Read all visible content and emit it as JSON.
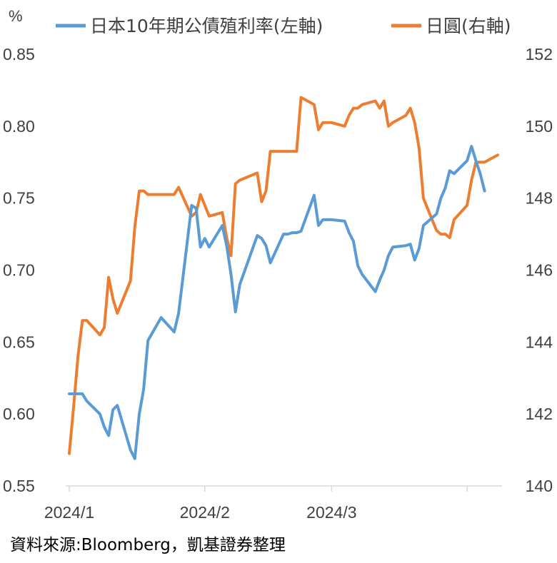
{
  "chart_data": {
    "type": "line",
    "unit_label": "%",
    "colors": {
      "jgb": "#5b9bd5",
      "jpy": "#ed7d31"
    },
    "legend": [
      "日本10年期公債殖利率(左軸)",
      "日圓(右軸)"
    ],
    "x_ticks": [
      "2024/1",
      "2024/2",
      "2024/3"
    ],
    "y_left": {
      "min": 0.55,
      "max": 0.85,
      "ticks": [
        "0.55",
        "0.60",
        "0.65",
        "0.70",
        "0.75",
        "0.80",
        "0.85"
      ]
    },
    "y_right": {
      "min": 140,
      "max": 152,
      "ticks": [
        "140",
        "142",
        "144",
        "146",
        "148",
        "150",
        "152"
      ]
    },
    "series": [
      {
        "name": "日本10年期公債殖利率(左軸)",
        "axis": "left",
        "color": "#5b9bd5",
        "points": [
          [
            "2024-01-01",
            0.614
          ],
          [
            "2024-01-02",
            0.614
          ],
          [
            "2024-01-03",
            0.614
          ],
          [
            "2024-01-04",
            0.614
          ],
          [
            "2024-01-05",
            0.609
          ],
          [
            "2024-01-08",
            0.6
          ],
          [
            "2024-01-09",
            0.591
          ],
          [
            "2024-01-10",
            0.585
          ],
          [
            "2024-01-11",
            0.603
          ],
          [
            "2024-01-12",
            0.606
          ],
          [
            "2024-01-15",
            0.575
          ],
          [
            "2024-01-16",
            0.569
          ],
          [
            "2024-01-17",
            0.6
          ],
          [
            "2024-01-18",
            0.617
          ],
          [
            "2024-01-19",
            0.651
          ],
          [
            "2024-01-22",
            0.667
          ],
          [
            "2024-01-25",
            0.657
          ],
          [
            "2024-01-26",
            0.67
          ],
          [
            "2024-01-29",
            0.745
          ],
          [
            "2024-01-30",
            0.743
          ],
          [
            "2024-01-31",
            0.716
          ],
          [
            "2024-02-01",
            0.722
          ],
          [
            "2024-02-02",
            0.716
          ],
          [
            "2024-02-05",
            0.731
          ],
          [
            "2024-02-06",
            0.717
          ],
          [
            "2024-02-07",
            0.697
          ],
          [
            "2024-02-08",
            0.671
          ],
          [
            "2024-02-09",
            0.69
          ],
          [
            "2024-02-13",
            0.724
          ],
          [
            "2024-02-14",
            0.722
          ],
          [
            "2024-02-15",
            0.717
          ],
          [
            "2024-02-16",
            0.705
          ],
          [
            "2024-02-19",
            0.725
          ],
          [
            "2024-02-20",
            0.725
          ],
          [
            "2024-02-21",
            0.726
          ],
          [
            "2024-02-22",
            0.726
          ],
          [
            "2024-02-23",
            0.727
          ],
          [
            "2024-02-26",
            0.752
          ],
          [
            "2024-02-27",
            0.731
          ],
          [
            "2024-02-28",
            0.735
          ],
          [
            "2024-02-29",
            0.735
          ],
          [
            "2024-03-01",
            0.735
          ],
          [
            "2024-03-04",
            0.734
          ],
          [
            "2024-03-05",
            0.726
          ],
          [
            "2024-03-06",
            0.72
          ],
          [
            "2024-03-07",
            0.703
          ],
          [
            "2024-03-08",
            0.697
          ],
          [
            "2024-03-11",
            0.685
          ],
          [
            "2024-03-12",
            0.693
          ],
          [
            "2024-03-13",
            0.7
          ],
          [
            "2024-03-14",
            0.71
          ],
          [
            "2024-03-15",
            0.716
          ],
          [
            "2024-03-18",
            0.717
          ],
          [
            "2024-03-19",
            0.718
          ],
          [
            "2024-03-20",
            0.707
          ],
          [
            "2024-03-21",
            0.715
          ],
          [
            "2024-03-22",
            0.731
          ],
          [
            "2024-03-25",
            0.739
          ],
          [
            "2024-03-26",
            0.75
          ],
          [
            "2024-03-27",
            0.757
          ],
          [
            "2024-03-28",
            0.769
          ],
          [
            "2024-03-29",
            0.767
          ],
          [
            "2024-04-01",
            0.776
          ],
          [
            "2024-04-02",
            0.786
          ],
          [
            "2024-04-03",
            0.776
          ],
          [
            "2024-04-04",
            0.767
          ],
          [
            "2024-04-05",
            0.755
          ]
        ]
      },
      {
        "name": "日圓(右軸)",
        "axis": "right",
        "color": "#ed7d31",
        "points": [
          [
            "2024-01-01",
            140.9
          ],
          [
            "2024-01-02",
            142.2
          ],
          [
            "2024-01-03",
            143.6
          ],
          [
            "2024-01-04",
            144.6
          ],
          [
            "2024-01-05",
            144.6
          ],
          [
            "2024-01-08",
            144.2
          ],
          [
            "2024-01-09",
            144.4
          ],
          [
            "2024-01-10",
            145.8
          ],
          [
            "2024-01-11",
            145.2
          ],
          [
            "2024-01-12",
            144.8
          ],
          [
            "2024-01-15",
            145.7
          ],
          [
            "2024-01-16",
            147.2
          ],
          [
            "2024-01-17",
            148.2
          ],
          [
            "2024-01-18",
            148.2
          ],
          [
            "2024-01-19",
            148.1
          ],
          [
            "2024-01-22",
            148.1
          ],
          [
            "2024-01-25",
            148.1
          ],
          [
            "2024-01-26",
            148.3
          ],
          [
            "2024-01-29",
            147.5
          ],
          [
            "2024-01-30",
            147.6
          ],
          [
            "2024-01-31",
            148.1
          ],
          [
            "2024-02-01",
            147.8
          ],
          [
            "2024-02-02",
            147.5
          ],
          [
            "2024-02-05",
            147.6
          ],
          [
            "2024-02-06",
            146.9
          ],
          [
            "2024-02-07",
            146.4
          ],
          [
            "2024-02-08",
            148.4
          ],
          [
            "2024-02-09",
            148.5
          ],
          [
            "2024-02-13",
            148.7
          ],
          [
            "2024-02-14",
            147.9
          ],
          [
            "2024-02-15",
            148.2
          ],
          [
            "2024-02-16",
            149.3
          ],
          [
            "2024-02-19",
            149.3
          ],
          [
            "2024-02-20",
            149.3
          ],
          [
            "2024-02-21",
            149.3
          ],
          [
            "2024-02-22",
            149.3
          ],
          [
            "2024-02-23",
            150.8
          ],
          [
            "2024-02-26",
            150.6
          ],
          [
            "2024-02-27",
            149.9
          ],
          [
            "2024-02-28",
            150.1
          ],
          [
            "2024-02-29",
            150.1
          ],
          [
            "2024-03-01",
            150.1
          ],
          [
            "2024-03-04",
            150.0
          ],
          [
            "2024-03-05",
            150.3
          ],
          [
            "2024-03-06",
            150.5
          ],
          [
            "2024-03-07",
            150.5
          ],
          [
            "2024-03-08",
            150.6
          ],
          [
            "2024-03-11",
            150.7
          ],
          [
            "2024-03-12",
            150.5
          ],
          [
            "2024-03-13",
            150.7
          ],
          [
            "2024-03-14",
            150.0
          ],
          [
            "2024-03-15",
            150.1
          ],
          [
            "2024-03-18",
            150.3
          ],
          [
            "2024-03-19",
            150.5
          ],
          [
            "2024-03-20",
            150.1
          ],
          [
            "2024-03-21",
            149.4
          ],
          [
            "2024-03-22",
            148.0
          ],
          [
            "2024-03-25",
            147.1
          ],
          [
            "2024-03-26",
            147.0
          ],
          [
            "2024-03-27",
            147.0
          ],
          [
            "2024-03-28",
            146.9
          ],
          [
            "2024-03-29",
            147.4
          ],
          [
            "2024-04-01",
            147.8
          ],
          [
            "2024-04-02",
            148.5
          ],
          [
            "2024-04-03",
            149.0
          ],
          [
            "2024-04-04",
            149.0
          ],
          [
            "2024-04-05",
            149.0
          ],
          [
            "2024-04-08",
            149.2
          ]
        ]
      }
    ]
  },
  "source_text": "資料來源:Bloomberg，凱基證券整理"
}
